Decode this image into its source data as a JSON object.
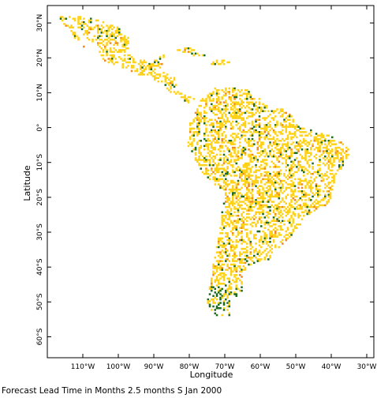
{
  "map": {
    "xlabel": "Longitude",
    "ylabel": "Latitude",
    "footer": "Forecast Lead Time in Months 2.5 months S Jan 2000",
    "lon_range": [
      -120,
      -28
    ],
    "lat_range": [
      -66,
      35
    ],
    "x_ticks": [
      {
        "value": -110,
        "label": "110°W"
      },
      {
        "value": -100,
        "label": "100°W"
      },
      {
        "value": -90,
        "label": "90°W"
      },
      {
        "value": -80,
        "label": "80°W"
      },
      {
        "value": -70,
        "label": "70°W"
      },
      {
        "value": -60,
        "label": "60°W"
      },
      {
        "value": -50,
        "label": "50°W"
      },
      {
        "value": -40,
        "label": "40°W"
      },
      {
        "value": -30,
        "label": "30°W"
      }
    ],
    "y_ticks": [
      {
        "value": 30,
        "label": "30°N"
      },
      {
        "value": 20,
        "label": "20°N"
      },
      {
        "value": 10,
        "label": "10°N"
      },
      {
        "value": 0,
        "label": "0°"
      },
      {
        "value": -10,
        "label": "10°S"
      },
      {
        "value": -20,
        "label": "20°S"
      },
      {
        "value": -30,
        "label": "30°S"
      },
      {
        "value": -40,
        "label": "40°S"
      },
      {
        "value": -50,
        "label": "50°S"
      },
      {
        "value": -60,
        "label": "60°S"
      }
    ],
    "colors": {
      "yellow": "#ffd21a",
      "orange": "#f08a1e",
      "green": "#1f6b1f",
      "frame": "#000000"
    }
  }
}
